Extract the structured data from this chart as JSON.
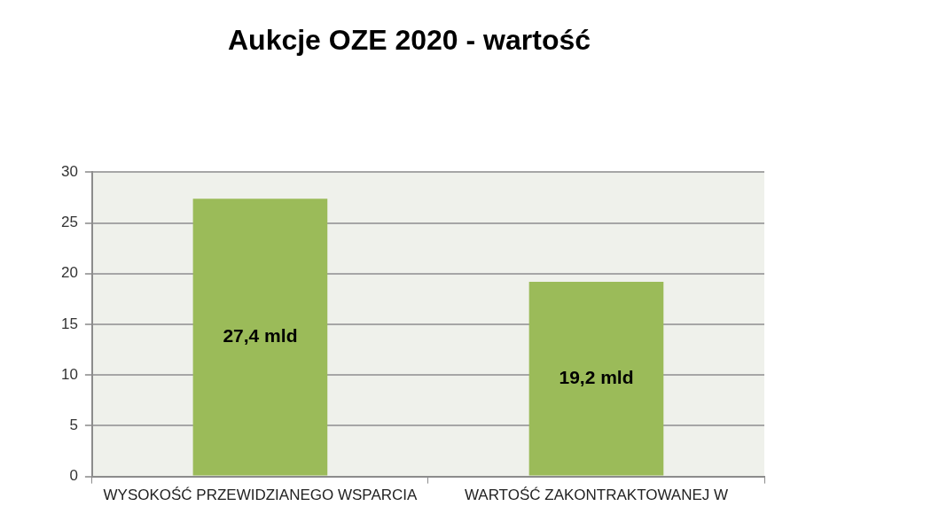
{
  "chart_data": {
    "type": "bar",
    "title": "Aukcje OZE 2020 - wartość",
    "categories": [
      "WYSOKOŚĆ PRZEWIDZIANEGO WSPARCIA",
      "WARTOŚĆ ZAKONTRAKTOWANEJ W"
    ],
    "values": [
      27.4,
      19.2
    ],
    "value_labels": [
      "27,4 mld",
      "19,2 mld"
    ],
    "color": "#9bbb59",
    "ylim": [
      0,
      30
    ],
    "yticks": [
      0,
      5,
      10,
      15,
      20,
      25,
      30
    ],
    "grid": "y"
  }
}
